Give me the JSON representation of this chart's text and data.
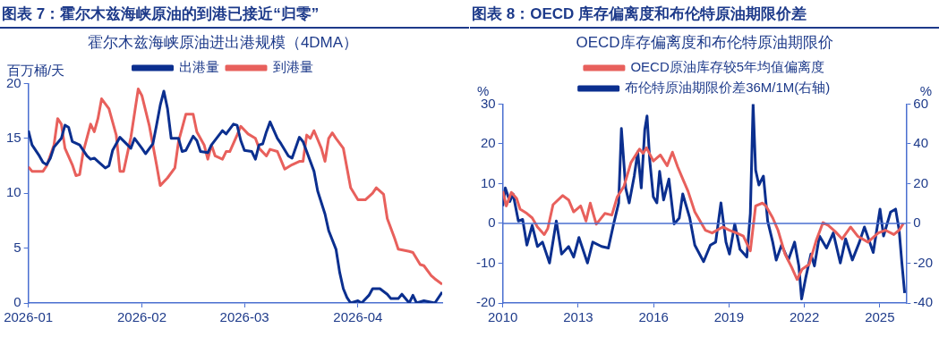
{
  "chart_data": [
    {
      "type": "line",
      "title": "图表 7：霍尔木兹海峡原油的到港已接近“归零”",
      "subtitle": "霍尔木兹海峡原油进出港规模（4DMA）",
      "ylabel": "百万桶/天",
      "legend": "top",
      "marker": "none",
      "grid": false,
      "xlim": [
        "2026-01-01",
        "2026-04-24"
      ],
      "xticks": [
        {
          "value": "2026-01-01",
          "label": "2026-01"
        },
        {
          "value": "2026-02-01",
          "label": "2026-02"
        },
        {
          "value": "2026-03-01",
          "label": "2026-03"
        },
        {
          "value": "2026-04-01",
          "label": "2026-04"
        }
      ],
      "ylim": [
        0,
        20
      ],
      "yticks": [
        0,
        5,
        10,
        15,
        20
      ],
      "series": [
        {
          "name": "出港量",
          "color": "#0b2f8f",
          "x": [
            "2026-01-01",
            "2026-01-02",
            "2026-01-04",
            "2026-01-05",
            "2026-01-06",
            "2026-01-07",
            "2026-01-08",
            "2026-01-10",
            "2026-01-11",
            "2026-01-12",
            "2026-01-13",
            "2026-01-15",
            "2026-01-17",
            "2026-01-18",
            "2026-01-19",
            "2026-01-20",
            "2026-01-22",
            "2026-01-23",
            "2026-01-24",
            "2026-01-26",
            "2026-01-29",
            "2026-01-30",
            "2026-02-01",
            "2026-02-02",
            "2026-02-04",
            "2026-02-05",
            "2026-02-06",
            "2026-02-07",
            "2026-02-08",
            "2026-02-09",
            "2026-02-11",
            "2026-02-12",
            "2026-02-13",
            "2026-02-15",
            "2026-02-16",
            "2026-02-17",
            "2026-02-19",
            "2026-02-20",
            "2026-02-23",
            "2026-02-24",
            "2026-02-26",
            "2026-02-27",
            "2026-02-28",
            "2026-03-01",
            "2026-03-03",
            "2026-03-04",
            "2026-03-05",
            "2026-03-06",
            "2026-03-07",
            "2026-03-08",
            "2026-03-10",
            "2026-03-11",
            "2026-03-13",
            "2026-03-14",
            "2026-03-16",
            "2026-03-17",
            "2026-03-18",
            "2026-03-20",
            "2026-03-21",
            "2026-03-23",
            "2026-03-24",
            "2026-03-26",
            "2026-03-27",
            "2026-03-28",
            "2026-03-29",
            "2026-03-30",
            "2026-04-01",
            "2026-04-02",
            "2026-04-04",
            "2026-04-05",
            "2026-04-07",
            "2026-04-09",
            "2026-04-10",
            "2026-04-12",
            "2026-04-13",
            "2026-04-15",
            "2026-04-16",
            "2026-04-17",
            "2026-04-19",
            "2026-04-22",
            "2026-04-24"
          ],
          "values": [
            15.7,
            14.4,
            13.4,
            12.8,
            12.6,
            13.2,
            14.2,
            15.0,
            16.2,
            16.0,
            14.7,
            14.4,
            13.4,
            13.1,
            13.2,
            12.9,
            12.3,
            12.5,
            13.9,
            15.1,
            14.1,
            15.0,
            14.1,
            13.6,
            14.5,
            16.2,
            18.0,
            19.3,
            17.7,
            15.0,
            15.0,
            13.8,
            13.9,
            15.2,
            14.8,
            13.8,
            13.7,
            14.4,
            15.7,
            15.4,
            16.3,
            16.2,
            14.8,
            13.9,
            13.8,
            13.1,
            14.4,
            14.5,
            15.6,
            16.5,
            15.0,
            14.5,
            13.4,
            13.2,
            15.1,
            14.7,
            13.8,
            12.0,
            10.2,
            8.1,
            6.6,
            4.9,
            2.8,
            1.3,
            0.5,
            0,
            0.2,
            0,
            0.7,
            1.3,
            1.3,
            0.8,
            0.4,
            0.4,
            0.8,
            0,
            0.7,
            0,
            0.2,
            0,
            1.0
          ]
        },
        {
          "name": "到港量",
          "color": "#e8605c",
          "x": [
            "2026-01-01",
            "2026-01-02",
            "2026-01-05",
            "2026-01-06",
            "2026-01-08",
            "2026-01-09",
            "2026-01-10",
            "2026-01-11",
            "2026-01-13",
            "2026-01-14",
            "2026-01-15",
            "2026-01-16",
            "2026-01-18",
            "2026-01-19",
            "2026-01-20",
            "2026-01-21",
            "2026-01-23",
            "2026-01-25",
            "2026-01-26",
            "2026-01-27",
            "2026-01-29",
            "2026-01-31",
            "2026-02-01",
            "2026-02-03",
            "2026-02-05",
            "2026-02-06",
            "2026-02-08",
            "2026-02-10",
            "2026-02-11",
            "2026-02-13",
            "2026-02-15",
            "2026-02-16",
            "2026-02-18",
            "2026-02-19",
            "2026-02-20",
            "2026-02-21",
            "2026-02-23",
            "2026-02-24",
            "2026-02-25",
            "2026-02-27",
            "2026-02-28",
            "2026-03-02",
            "2026-03-04",
            "2026-03-05",
            "2026-03-07",
            "2026-03-08",
            "2026-03-10",
            "2026-03-12",
            "2026-03-14",
            "2026-03-16",
            "2026-03-17",
            "2026-03-18",
            "2026-03-19",
            "2026-03-20",
            "2026-03-22",
            "2026-03-23",
            "2026-03-24",
            "2026-03-25",
            "2026-03-26",
            "2026-03-28",
            "2026-03-30",
            "2026-04-01",
            "2026-04-03",
            "2026-04-05",
            "2026-04-06",
            "2026-04-08",
            "2026-04-09",
            "2026-04-11",
            "2026-04-12",
            "2026-04-15",
            "2026-04-16",
            "2026-04-18",
            "2026-04-19",
            "2026-04-21",
            "2026-04-22",
            "2026-04-24"
          ],
          "values": [
            12.4,
            12.0,
            12.0,
            12.5,
            14.4,
            16.8,
            16.3,
            14.1,
            12.6,
            11.6,
            11.7,
            13.8,
            16.3,
            15.6,
            16.8,
            18.6,
            17.7,
            15.3,
            12.0,
            12.0,
            15.1,
            19.5,
            18.9,
            16.2,
            12.6,
            10.7,
            11.4,
            12.3,
            14.7,
            17.2,
            17.2,
            15.6,
            14.4,
            13.1,
            14.4,
            13.4,
            13.1,
            13.8,
            13.8,
            15.3,
            16.1,
            15.4,
            15.0,
            14.1,
            13.4,
            14.0,
            13.8,
            12.2,
            12.6,
            12.9,
            12.9,
            15.3,
            15.0,
            15.7,
            14.1,
            12.9,
            15.0,
            15.5,
            15.0,
            14.1,
            10.5,
            9.4,
            9.4,
            10.0,
            10.5,
            9.9,
            7.7,
            5.9,
            4.9,
            4.7,
            4.6,
            3.5,
            3.4,
            2.5,
            2.2,
            1.7
          ]
        }
      ]
    },
    {
      "type": "line",
      "title": "图表 8：OECD 库存偏离度和布伦特原油期限价差",
      "subtitle": "OECD库存偏离度和布伦特原油期限价",
      "ylabel": "%",
      "y2label": "%",
      "legend": "top",
      "marker": "none",
      "grid": false,
      "xlim": [
        2010,
        2026.05
      ],
      "xticks": [
        2010,
        2013,
        2016,
        2019,
        2022,
        2025
      ],
      "ylim": [
        -20,
        30
      ],
      "yticks": [
        -20,
        -10,
        0,
        10,
        20,
        30
      ],
      "y2lim": [
        -40,
        60
      ],
      "y2ticks": [
        -40,
        -20,
        0,
        20,
        40,
        60
      ],
      "ref_lines": [
        {
          "axis": "y",
          "value": 0,
          "color": "#4a6fd0"
        }
      ],
      "series": [
        {
          "name": "OECD原油库存较5年均值偏离度",
          "color": "#e8605c",
          "x": [
            2010.0,
            2010.14,
            2010.34,
            2010.55,
            2010.69,
            2010.96,
            2011.17,
            2011.38,
            2011.65,
            2011.79,
            2012.0,
            2012.38,
            2012.62,
            2012.82,
            2013.1,
            2013.31,
            2013.48,
            2013.72,
            2014.06,
            2014.34,
            2014.55,
            2014.82,
            2015.1,
            2015.44,
            2015.58,
            2015.72,
            2015.99,
            2016.27,
            2016.54,
            2016.75,
            2016.96,
            2017.16,
            2017.37,
            2017.64,
            2017.85,
            2018.06,
            2018.33,
            2018.75,
            2019.02,
            2019.3,
            2019.57,
            2019.85,
            2020.06,
            2020.33,
            2020.47,
            2020.74,
            2020.95,
            2021.23,
            2021.5,
            2021.71,
            2021.91,
            2022.19,
            2022.47,
            2022.74,
            2022.95,
            2023.22,
            2023.5,
            2023.84,
            2024.12,
            2024.53,
            2024.94,
            2025.22,
            2025.56,
            2025.77,
            2025.94
          ],
          "values": [
            8.1,
            4.4,
            7.8,
            6.3,
            3.6,
            2.5,
            1.4,
            -0.9,
            -2.8,
            -1.3,
            4.7,
            7.0,
            5.9,
            2.9,
            4.4,
            0.6,
            5.1,
            -0.2,
            2.5,
            2.1,
            6.6,
            9.3,
            15.3,
            18.7,
            17.6,
            19,
            15.7,
            17.2,
            14.5,
            17.9,
            14.2,
            11.2,
            8.1,
            2.9,
            0.6,
            -1.7,
            -2.4,
            -0.9,
            -1.7,
            -2.4,
            -3.2,
            -6.9,
            4.4,
            5.1,
            4.4,
            1.4,
            -1.7,
            -7.7,
            -11.1,
            -14.1,
            -11.5,
            -10.3,
            -4.3,
            0.2,
            -0.5,
            -2.0,
            -3.9,
            -0.9,
            -3.2,
            -4.7,
            -2.4,
            -1.7,
            -2.8,
            -1.7,
            0
          ]
        },
        {
          "name": "布伦特原油期限价差36M/1M(右轴)",
          "color": "#0b2f8f",
          "axis": "y2",
          "x": [
            2010.0,
            2010.1,
            2010.28,
            2010.41,
            2010.62,
            2010.79,
            2010.96,
            2011.17,
            2011.38,
            2011.58,
            2011.86,
            2012.13,
            2012.34,
            2012.62,
            2012.82,
            2013.03,
            2013.37,
            2013.58,
            2013.93,
            2014.2,
            2014.41,
            2014.61,
            2014.72,
            2014.89,
            2015.03,
            2015.23,
            2015.37,
            2015.51,
            2015.65,
            2015.74,
            2015.85,
            2015.99,
            2016.13,
            2016.24,
            2016.4,
            2016.61,
            2016.82,
            2017.02,
            2017.16,
            2017.44,
            2017.64,
            2017.99,
            2018.26,
            2018.47,
            2018.68,
            2018.88,
            2019.02,
            2019.23,
            2019.44,
            2019.71,
            2019.85,
            2019.96,
            2020.06,
            2020.19,
            2020.37,
            2020.54,
            2020.74,
            2020.88,
            2021.09,
            2021.36,
            2021.61,
            2021.78,
            2021.89,
            2022.05,
            2022.26,
            2022.4,
            2022.6,
            2022.88,
            2023.15,
            2023.43,
            2023.64,
            2023.91,
            2024.19,
            2024.39,
            2024.74,
            2025.01,
            2025.15,
            2025.43,
            2025.63,
            2025.77,
            2025.88,
            2025.99
          ],
          "values": [
            8.7,
            17.8,
            11,
            14.8,
            1.2,
            2,
            -10.9,
            -1,
            -11.6,
            -9.4,
            -19.9,
            1.2,
            -15.4,
            -11.6,
            -16.9,
            -7.1,
            -19.9,
            -9.4,
            -11.6,
            -12.4,
            -0.3,
            10.3,
            47.7,
            17.8,
            10.3,
            23.8,
            35.9,
            17.8,
            47.2,
            54,
            31.4,
            13.3,
            10.3,
            26.1,
            11.8,
            22.3,
            -0.3,
            2.7,
            14.8,
            2.7,
            -10.9,
            -19.2,
            -10.9,
            -9.4,
            10.3,
            -9.4,
            -15.4,
            -0.3,
            -13.1,
            -16.9,
            5,
            60,
            26.8,
            19.3,
            23.8,
            1.2,
            -9.4,
            -18.4,
            -10.9,
            -18.4,
            -9.4,
            -21.4,
            -38,
            -27.5,
            -15.4,
            -21.4,
            -6.3,
            -12.4,
            -4.8,
            -19.9,
            -7.8,
            -18.4,
            -9.4,
            -1.8,
            -14.6,
            7.2,
            -6.3,
            5.7,
            7.2,
            -3.3,
            -19.9,
            -35
          ]
        }
      ]
    }
  ]
}
